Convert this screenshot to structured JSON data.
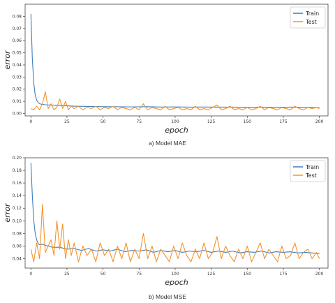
{
  "colors": {
    "train": "#3b7dbd",
    "test": "#f5922a"
  },
  "captions": {
    "a": "a) Model MAE",
    "b": "b) Model MSE"
  },
  "chart_data": [
    {
      "type": "line",
      "xlabel": "epoch",
      "ylabel": "error",
      "xlim": [
        -4,
        206
      ],
      "ylim": [
        -0.002,
        0.09
      ],
      "xticks": [
        0,
        25,
        50,
        75,
        100,
        125,
        150,
        175,
        200
      ],
      "yticks": [
        0.0,
        0.01,
        0.02,
        0.03,
        0.04,
        0.05,
        0.06,
        0.07,
        0.08
      ],
      "ytick_labels": [
        "0.00",
        "0.01",
        "0.02",
        "0.03",
        "0.04",
        "0.05",
        "0.06",
        "0.07",
        "0.08"
      ],
      "grid": false,
      "legend": "top-right",
      "series": [
        {
          "name": "Train",
          "color": "#3b7dbd",
          "x": [
            0,
            1,
            2,
            3,
            4,
            5,
            6,
            8,
            10,
            15,
            20,
            25,
            30,
            40,
            50,
            60,
            70,
            80,
            90,
            100,
            110,
            120,
            130,
            140,
            150,
            160,
            170,
            180,
            190,
            200
          ],
          "y": [
            0.082,
            0.045,
            0.025,
            0.015,
            0.011,
            0.009,
            0.008,
            0.0075,
            0.0072,
            0.0068,
            0.0066,
            0.0063,
            0.006,
            0.0058,
            0.0056,
            0.0055,
            0.0054,
            0.0056,
            0.0053,
            0.0054,
            0.0052,
            0.0053,
            0.0052,
            0.0052,
            0.0051,
            0.0052,
            0.0051,
            0.0052,
            0.0051,
            0.0048
          ]
        },
        {
          "name": "Test",
          "color": "#f5922a",
          "x": [
            0,
            2,
            4,
            6,
            8,
            10,
            12,
            14,
            16,
            18,
            20,
            22,
            24,
            26,
            28,
            30,
            33,
            36,
            39,
            42,
            45,
            48,
            51,
            54,
            57,
            60,
            63,
            66,
            69,
            72,
            75,
            78,
            81,
            84,
            87,
            90,
            93,
            96,
            99,
            102,
            105,
            108,
            111,
            114,
            117,
            120,
            123,
            126,
            129,
            132,
            135,
            138,
            141,
            144,
            147,
            150,
            153,
            156,
            159,
            162,
            165,
            168,
            171,
            174,
            177,
            180,
            183,
            186,
            189,
            192,
            195,
            198,
            200
          ],
          "y": [
            0.004,
            0.003,
            0.006,
            0.003,
            0.008,
            0.018,
            0.004,
            0.008,
            0.003,
            0.005,
            0.012,
            0.004,
            0.01,
            0.003,
            0.006,
            0.004,
            0.006,
            0.003,
            0.005,
            0.004,
            0.006,
            0.003,
            0.005,
            0.004,
            0.006,
            0.003,
            0.005,
            0.004,
            0.003,
            0.005,
            0.003,
            0.008,
            0.003,
            0.005,
            0.004,
            0.003,
            0.006,
            0.003,
            0.004,
            0.005,
            0.003,
            0.004,
            0.003,
            0.006,
            0.003,
            0.004,
            0.003,
            0.005,
            0.007,
            0.003,
            0.004,
            0.006,
            0.003,
            0.004,
            0.003,
            0.005,
            0.003,
            0.004,
            0.006,
            0.003,
            0.005,
            0.004,
            0.003,
            0.005,
            0.004,
            0.003,
            0.006,
            0.004,
            0.003,
            0.005,
            0.004,
            0.005,
            0.004
          ]
        }
      ]
    },
    {
      "type": "line",
      "xlabel": "epoch",
      "ylabel": "error",
      "xlim": [
        -4,
        206
      ],
      "ylim": [
        0.025,
        0.2
      ],
      "xticks": [
        0,
        25,
        50,
        75,
        100,
        125,
        150,
        175,
        200
      ],
      "yticks": [
        0.04,
        0.06,
        0.08,
        0.1,
        0.12,
        0.14,
        0.16,
        0.18,
        0.2
      ],
      "ytick_labels": [
        "0.04",
        "0.06",
        "0.08",
        "0.10",
        "0.12",
        "0.14",
        "0.16",
        "0.18",
        "0.20"
      ],
      "grid": false,
      "legend": "top-right",
      "series": [
        {
          "name": "Train",
          "color": "#3b7dbd",
          "x": [
            0,
            1,
            2,
            3,
            4,
            5,
            6,
            8,
            10,
            12,
            15,
            20,
            25,
            30,
            35,
            40,
            45,
            50,
            55,
            60,
            65,
            70,
            75,
            80,
            85,
            90,
            95,
            100,
            105,
            110,
            115,
            120,
            125,
            130,
            135,
            140,
            145,
            150,
            155,
            160,
            165,
            170,
            175,
            180,
            185,
            190,
            195,
            200
          ],
          "y": [
            0.192,
            0.14,
            0.1,
            0.08,
            0.07,
            0.064,
            0.062,
            0.063,
            0.061,
            0.06,
            0.058,
            0.058,
            0.055,
            0.056,
            0.053,
            0.056,
            0.052,
            0.054,
            0.052,
            0.055,
            0.051,
            0.053,
            0.052,
            0.054,
            0.05,
            0.053,
            0.051,
            0.053,
            0.05,
            0.052,
            0.051,
            0.053,
            0.05,
            0.052,
            0.05,
            0.052,
            0.049,
            0.051,
            0.05,
            0.052,
            0.049,
            0.051,
            0.05,
            0.051,
            0.049,
            0.05,
            0.049,
            0.048
          ]
        },
        {
          "name": "Test",
          "color": "#f5922a",
          "x": [
            0,
            2,
            4,
            6,
            8,
            10,
            12,
            14,
            16,
            18,
            20,
            22,
            24,
            26,
            28,
            30,
            33,
            36,
            39,
            42,
            45,
            48,
            51,
            54,
            57,
            60,
            63,
            66,
            69,
            72,
            75,
            78,
            81,
            84,
            87,
            90,
            93,
            96,
            99,
            102,
            105,
            108,
            111,
            114,
            117,
            120,
            123,
            126,
            129,
            132,
            135,
            138,
            141,
            144,
            147,
            150,
            153,
            156,
            159,
            162,
            165,
            168,
            171,
            174,
            177,
            180,
            183,
            186,
            189,
            192,
            195,
            198,
            200
          ],
          "y": [
            0.055,
            0.035,
            0.065,
            0.04,
            0.126,
            0.05,
            0.06,
            0.07,
            0.045,
            0.1,
            0.055,
            0.095,
            0.04,
            0.07,
            0.045,
            0.065,
            0.035,
            0.06,
            0.045,
            0.055,
            0.035,
            0.065,
            0.045,
            0.055,
            0.035,
            0.06,
            0.04,
            0.065,
            0.035,
            0.055,
            0.04,
            0.08,
            0.04,
            0.06,
            0.035,
            0.055,
            0.045,
            0.035,
            0.06,
            0.04,
            0.065,
            0.045,
            0.035,
            0.055,
            0.04,
            0.065,
            0.04,
            0.05,
            0.075,
            0.04,
            0.06,
            0.045,
            0.035,
            0.055,
            0.04,
            0.06,
            0.035,
            0.05,
            0.065,
            0.04,
            0.055,
            0.045,
            0.035,
            0.06,
            0.04,
            0.045,
            0.065,
            0.04,
            0.05,
            0.055,
            0.04,
            0.05,
            0.04
          ]
        }
      ]
    }
  ]
}
